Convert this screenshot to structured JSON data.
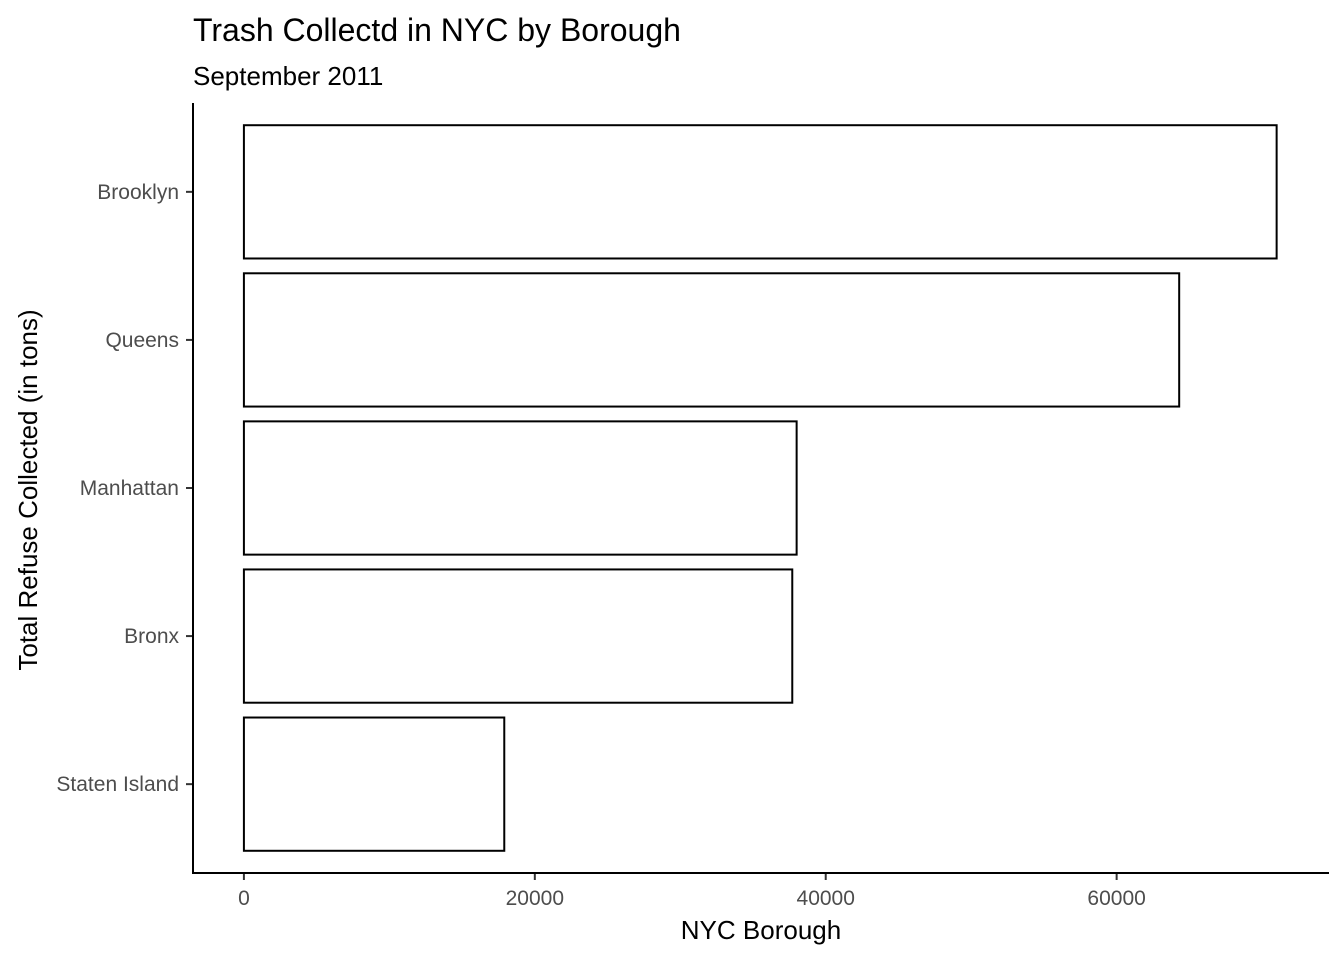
{
  "chart_data": {
    "type": "bar",
    "orientation": "horizontal",
    "title": "Trash Collectd in NYC by Borough",
    "subtitle": "September 2011",
    "xlabel": "NYC Borough",
    "ylabel": "Total Refuse Collected (in tons)",
    "categories": [
      "Brooklyn",
      "Queens",
      "Manhattan",
      "Bronx",
      "Staten Island"
    ],
    "values": [
      71000,
      64300,
      38000,
      37700,
      17900
    ],
    "xlim": [
      -3500,
      74600
    ],
    "x_ticks": [
      0,
      20000,
      40000,
      60000
    ],
    "x_tick_labels": [
      "0",
      "20000",
      "40000",
      "60000"
    ],
    "bar_fill": "#ffffff",
    "bar_outline": "#000000",
    "grid": false,
    "legend": "none"
  }
}
